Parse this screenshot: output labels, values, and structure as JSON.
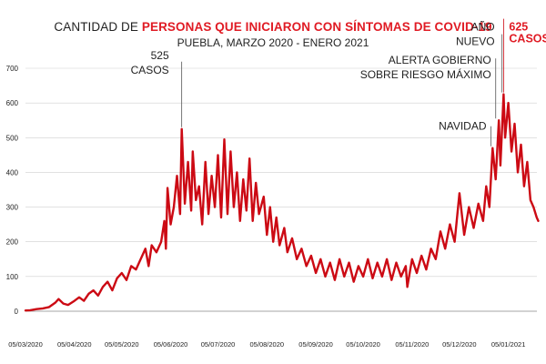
{
  "title": {
    "prefix": "CANTIDAD DE",
    "highlight": "PERSONAS QUE INICIARON CON SÍNTOMAS DE COVID-19"
  },
  "subtitle": "PUEBLA, MARZO 2020 - ENERO 2021",
  "colors": {
    "line": "#cc0a14",
    "grid": "#cfcfcf",
    "title_highlight": "#e01b24"
  },
  "chart_data": {
    "type": "line",
    "title": "CANTIDAD DE PERSONAS QUE INICIARON CON SÍNTOMAS DE COVID-19",
    "subtitle": "PUEBLA, MARZO 2020 - ENERO 2021",
    "xlabel": "",
    "ylabel": "",
    "ylim": [
      0,
      700
    ],
    "yticks": [
      0,
      100,
      200,
      300,
      400,
      500,
      600,
      700
    ],
    "xticks": [
      "05/03/2020",
      "05/04/2020",
      "05/05/2020",
      "05/06/2020",
      "05/07/2020",
      "05/08/2020",
      "05/09/2020",
      "05/10/2020",
      "05/11/2020",
      "05/12/2020",
      "05/01/2021"
    ],
    "grid": true,
    "x_start": "2020-03-05",
    "series": [
      {
        "name": "",
        "points": [
          [
            "2020-03-05",
            2
          ],
          [
            "2020-03-08",
            3
          ],
          [
            "2020-03-12",
            6
          ],
          [
            "2020-03-16",
            8
          ],
          [
            "2020-03-20",
            12
          ],
          [
            "2020-03-24",
            25
          ],
          [
            "2020-03-26",
            35
          ],
          [
            "2020-03-29",
            22
          ],
          [
            "2020-04-01",
            18
          ],
          [
            "2020-04-05",
            30
          ],
          [
            "2020-04-08",
            40
          ],
          [
            "2020-04-11",
            30
          ],
          [
            "2020-04-14",
            50
          ],
          [
            "2020-04-17",
            60
          ],
          [
            "2020-04-20",
            45
          ],
          [
            "2020-04-23",
            70
          ],
          [
            "2020-04-26",
            85
          ],
          [
            "2020-04-29",
            60
          ],
          [
            "2020-05-02",
            95
          ],
          [
            "2020-05-05",
            110
          ],
          [
            "2020-05-08",
            90
          ],
          [
            "2020-05-11",
            130
          ],
          [
            "2020-05-14",
            120
          ],
          [
            "2020-05-17",
            150
          ],
          [
            "2020-05-20",
            180
          ],
          [
            "2020-05-22",
            130
          ],
          [
            "2020-05-24",
            190
          ],
          [
            "2020-05-27",
            170
          ],
          [
            "2020-05-30",
            200
          ],
          [
            "2020-06-01",
            260
          ],
          [
            "2020-06-02",
            180
          ],
          [
            "2020-06-03",
            355
          ],
          [
            "2020-06-05",
            250
          ],
          [
            "2020-06-07",
            300
          ],
          [
            "2020-06-09",
            390
          ],
          [
            "2020-06-11",
            280
          ],
          [
            "2020-06-12",
            525
          ],
          [
            "2020-06-14",
            310
          ],
          [
            "2020-06-16",
            430
          ],
          [
            "2020-06-18",
            290
          ],
          [
            "2020-06-19",
            460
          ],
          [
            "2020-06-21",
            320
          ],
          [
            "2020-06-23",
            360
          ],
          [
            "2020-06-25",
            250
          ],
          [
            "2020-06-27",
            430
          ],
          [
            "2020-06-29",
            280
          ],
          [
            "2020-07-01",
            390
          ],
          [
            "2020-07-03",
            300
          ],
          [
            "2020-07-05",
            450
          ],
          [
            "2020-07-07",
            270
          ],
          [
            "2020-07-09",
            495
          ],
          [
            "2020-07-11",
            280
          ],
          [
            "2020-07-13",
            460
          ],
          [
            "2020-07-15",
            300
          ],
          [
            "2020-07-17",
            400
          ],
          [
            "2020-07-19",
            260
          ],
          [
            "2020-07-21",
            380
          ],
          [
            "2020-07-23",
            290
          ],
          [
            "2020-07-25",
            440
          ],
          [
            "2020-07-27",
            260
          ],
          [
            "2020-07-29",
            370
          ],
          [
            "2020-07-31",
            280
          ],
          [
            "2020-08-03",
            330
          ],
          [
            "2020-08-05",
            220
          ],
          [
            "2020-08-07",
            300
          ],
          [
            "2020-08-09",
            200
          ],
          [
            "2020-08-11",
            270
          ],
          [
            "2020-08-13",
            190
          ],
          [
            "2020-08-16",
            240
          ],
          [
            "2020-08-18",
            170
          ],
          [
            "2020-08-21",
            210
          ],
          [
            "2020-08-24",
            150
          ],
          [
            "2020-08-27",
            180
          ],
          [
            "2020-08-30",
            130
          ],
          [
            "2020-09-02",
            160
          ],
          [
            "2020-09-05",
            110
          ],
          [
            "2020-09-08",
            150
          ],
          [
            "2020-09-11",
            100
          ],
          [
            "2020-09-14",
            140
          ],
          [
            "2020-09-17",
            90
          ],
          [
            "2020-09-20",
            150
          ],
          [
            "2020-09-23",
            100
          ],
          [
            "2020-09-26",
            140
          ],
          [
            "2020-09-29",
            85
          ],
          [
            "2020-10-02",
            130
          ],
          [
            "2020-10-05",
            100
          ],
          [
            "2020-10-08",
            150
          ],
          [
            "2020-10-11",
            95
          ],
          [
            "2020-10-14",
            140
          ],
          [
            "2020-10-17",
            100
          ],
          [
            "2020-10-20",
            150
          ],
          [
            "2020-10-23",
            90
          ],
          [
            "2020-10-26",
            140
          ],
          [
            "2020-10-29",
            100
          ],
          [
            "2020-11-01",
            130
          ],
          [
            "2020-11-02",
            70
          ],
          [
            "2020-11-05",
            150
          ],
          [
            "2020-11-08",
            110
          ],
          [
            "2020-11-11",
            160
          ],
          [
            "2020-11-14",
            120
          ],
          [
            "2020-11-17",
            180
          ],
          [
            "2020-11-20",
            150
          ],
          [
            "2020-11-23",
            230
          ],
          [
            "2020-11-26",
            180
          ],
          [
            "2020-11-29",
            250
          ],
          [
            "2020-12-02",
            200
          ],
          [
            "2020-12-05",
            340
          ],
          [
            "2020-12-08",
            220
          ],
          [
            "2020-12-11",
            300
          ],
          [
            "2020-12-14",
            240
          ],
          [
            "2020-12-17",
            310
          ],
          [
            "2020-12-20",
            260
          ],
          [
            "2020-12-22",
            360
          ],
          [
            "2020-12-24",
            300
          ],
          [
            "2020-12-26",
            470
          ],
          [
            "2020-12-28",
            380
          ],
          [
            "2020-12-30",
            550
          ],
          [
            "2020-12-31",
            420
          ],
          [
            "2021-01-02",
            625
          ],
          [
            "2021-01-03",
            500
          ],
          [
            "2021-01-05",
            600
          ],
          [
            "2021-01-07",
            460
          ],
          [
            "2021-01-09",
            540
          ],
          [
            "2021-01-11",
            400
          ],
          [
            "2021-01-13",
            480
          ],
          [
            "2021-01-15",
            360
          ],
          [
            "2021-01-17",
            430
          ],
          [
            "2021-01-19",
            320
          ],
          [
            "2021-01-21",
            300
          ],
          [
            "2021-01-23",
            270
          ],
          [
            "2021-01-24",
            260
          ]
        ]
      }
    ],
    "annotations": [
      {
        "lines": [
          "525",
          "CASOS"
        ],
        "date": "2020-06-12",
        "value": 525,
        "style": "normal"
      },
      {
        "lines": [
          "NAVIDAD"
        ],
        "date": "2020-12-25",
        "value": 470,
        "style": "normal"
      },
      {
        "lines": [
          "ALERTA GOBIERNO",
          "SOBRE RIESGO MÁXIMO"
        ],
        "date": "2020-12-28",
        "value": 550,
        "style": "normal"
      },
      {
        "lines": [
          "AÑO",
          "NUEVO"
        ],
        "date": "2021-01-01",
        "value": 625,
        "style": "normal"
      },
      {
        "lines": [
          "625",
          "CASOS"
        ],
        "date": "2021-01-02",
        "value": 625,
        "style": "red"
      }
    ]
  }
}
